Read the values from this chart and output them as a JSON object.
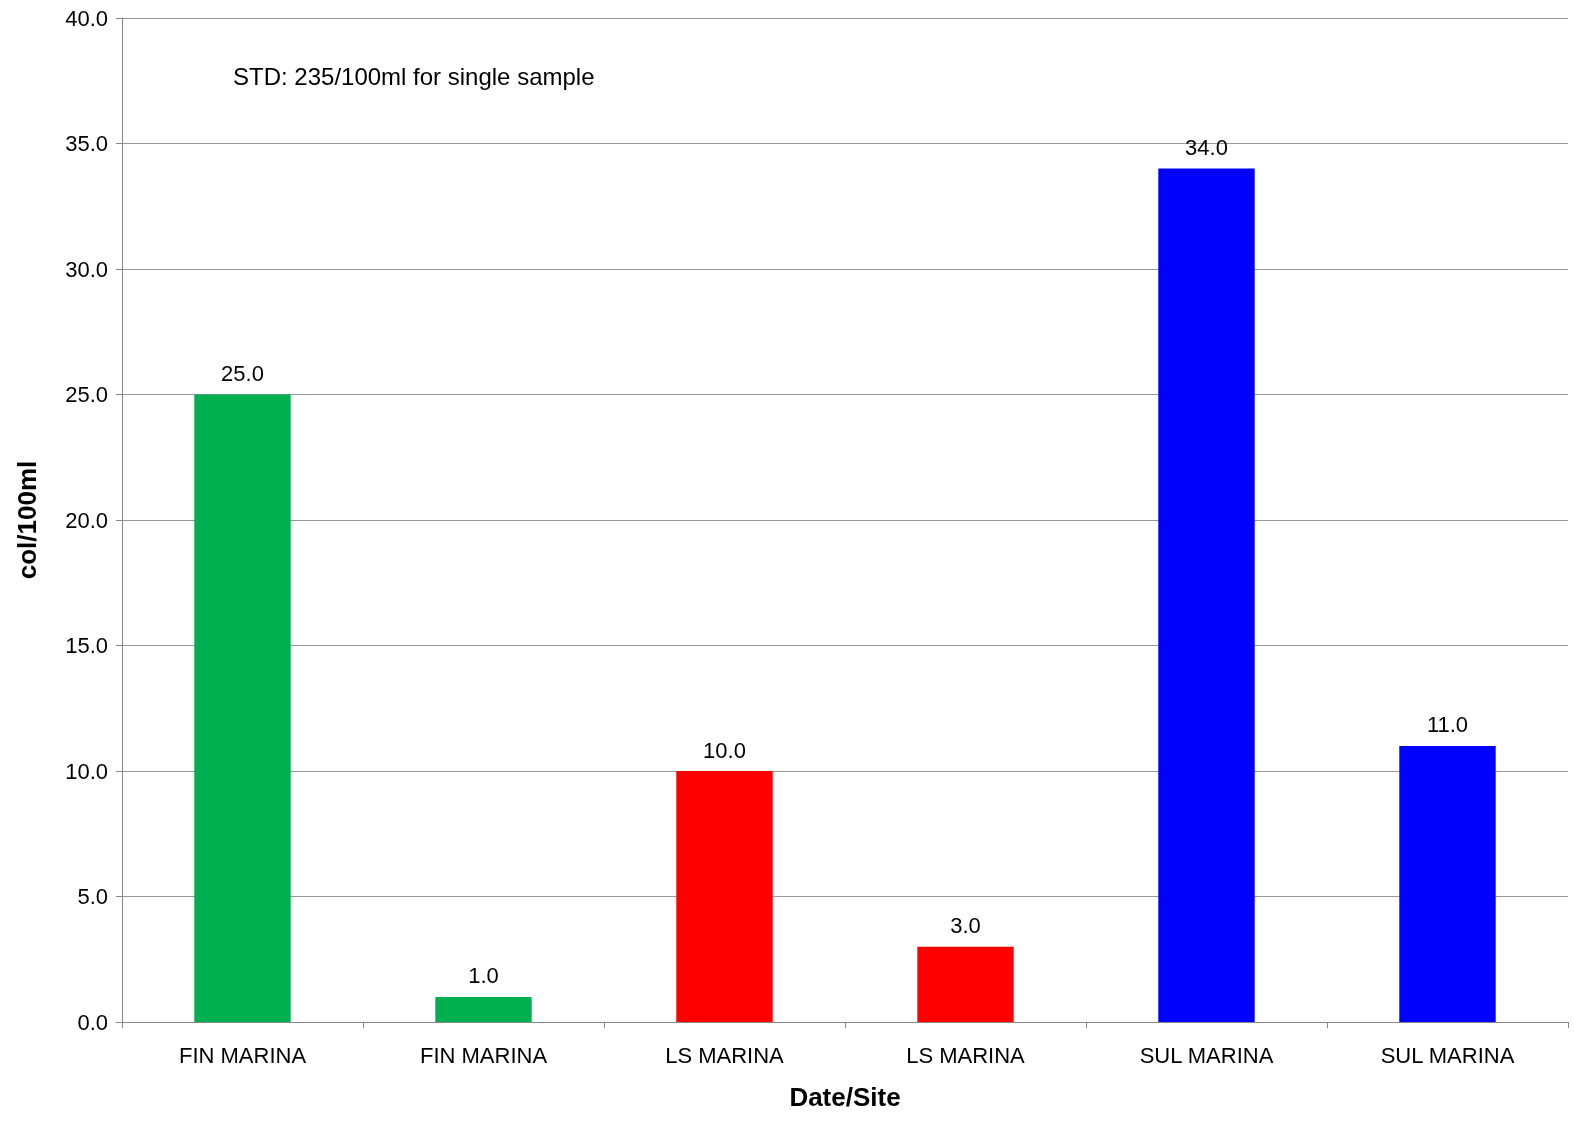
{
  "chart_data": {
    "type": "bar",
    "xlabel": "Date/Site",
    "ylabel": "col/100ml",
    "categories": [
      "FIN MARINA",
      "FIN MARINA",
      "LS MARINA",
      "LS MARINA",
      "SUL MARINA",
      "SUL MARINA"
    ],
    "values": [
      25,
      1,
      10,
      3,
      34,
      11
    ],
    "colors": [
      "#00b050",
      "#00b050",
      "#ff0000",
      "#ff0000",
      "#0000ff",
      "#0000ff"
    ],
    "value_labels": [
      "25.0",
      "1.0",
      "10.0",
      "3.0",
      "34.0",
      "11.0"
    ],
    "ylim": [
      0,
      40
    ],
    "yticks": [
      {
        "value": 0,
        "label": "0.0"
      },
      {
        "value": 5,
        "label": "5.0"
      },
      {
        "value": 10,
        "label": "10.0"
      },
      {
        "value": 15,
        "label": "15.0"
      },
      {
        "value": 20,
        "label": "20.0"
      },
      {
        "value": 25,
        "label": "25.0"
      },
      {
        "value": 30,
        "label": "30.0"
      },
      {
        "value": 35,
        "label": "35.0"
      },
      {
        "value": 40,
        "label": "40.0"
      }
    ],
    "grid": "y",
    "annotations": [
      "STD: 235/100ml for single sample"
    ]
  }
}
